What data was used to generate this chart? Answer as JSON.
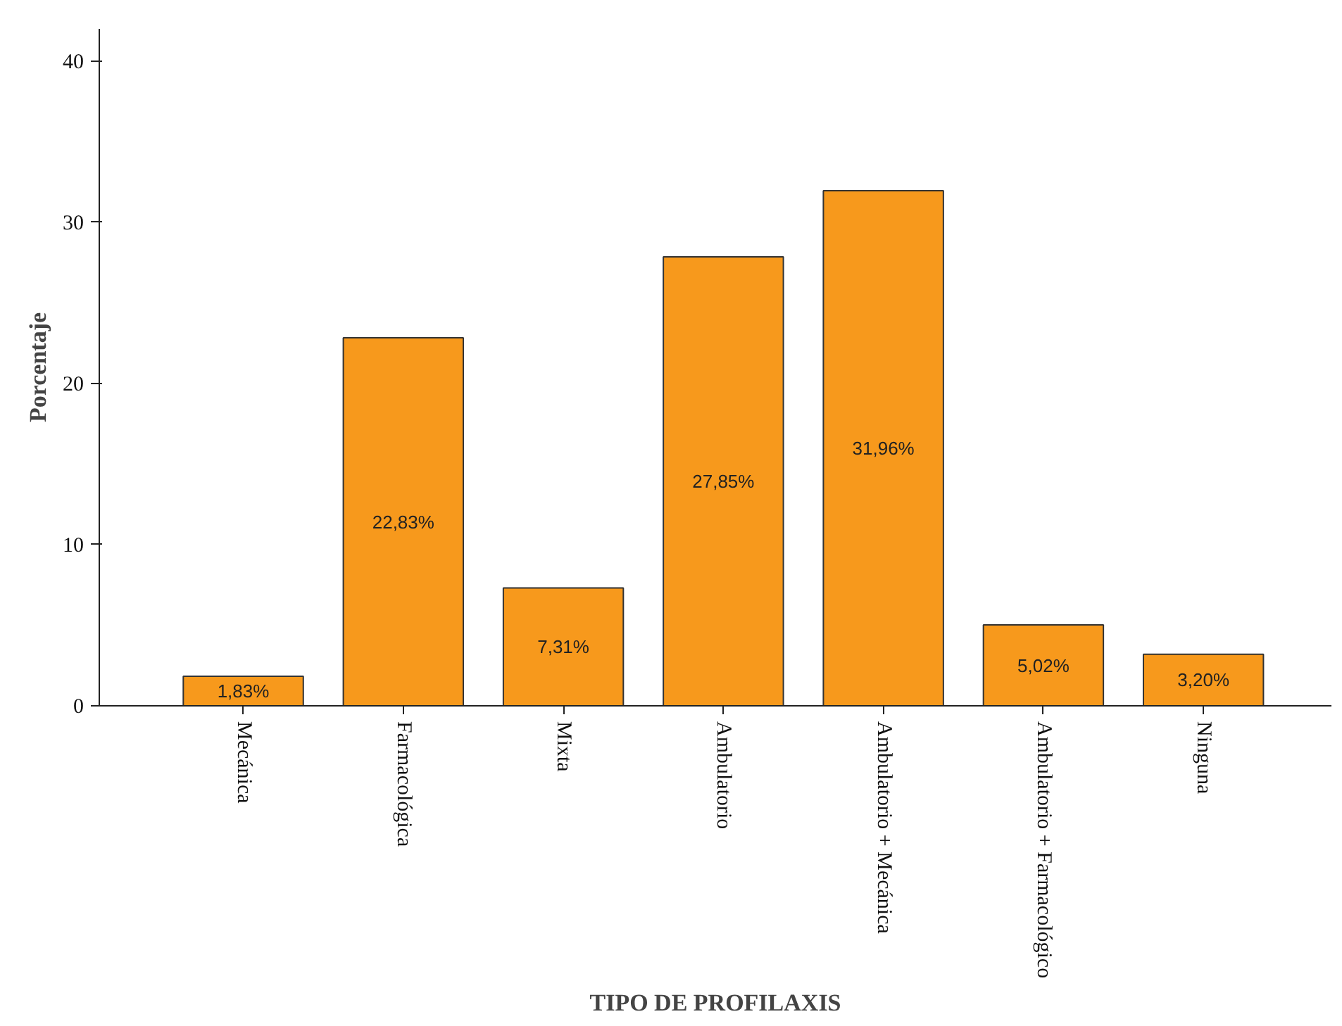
{
  "chart_data": {
    "type": "bar",
    "xlabel": "TIPO DE PROFILAXIS",
    "ylabel": "Porcentaje",
    "categories": [
      "Mecánica",
      "Farmacológica",
      "Mixta",
      "Ambulatorio",
      "Ambulatorio + Mecánica",
      "Ambulatorio + Farmacológico",
      "Ninguna"
    ],
    "values": [
      1.83,
      22.83,
      7.31,
      27.85,
      31.96,
      5.02,
      3.2
    ],
    "value_labels": [
      "1,83%",
      "22,83%",
      "7,31%",
      "27,85%",
      "31,96%",
      "5,02%",
      "3,20%"
    ],
    "color": "#f7991c",
    "ylim": [
      0,
      42
    ],
    "yticks": [
      0,
      10,
      20,
      30,
      40
    ],
    "grid": false
  }
}
